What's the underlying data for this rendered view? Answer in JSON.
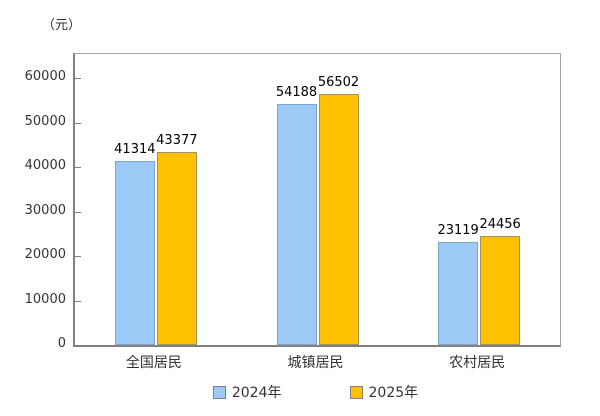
{
  "chart_data": {
    "type": "bar",
    "title": "",
    "unit_label": "（元）",
    "categories": [
      "全国居民",
      "城镇居民",
      "农村居民"
    ],
    "series": [
      {
        "name": "2024年",
        "values": [
          41314,
          54188,
          23119
        ],
        "color": "#9DC9F7",
        "border_color": "#7FA5C9"
      },
      {
        "name": "2025年",
        "values": [
          43377,
          56502,
          24456
        ],
        "color": "#FFC000",
        "border_color": "#A39355"
      }
    ],
    "value_labels_shown": true,
    "ylim": [
      0,
      60000
    ],
    "ytick_step": 10000,
    "ytick_labels": [
      "0",
      "10000",
      "20000",
      "30000",
      "40000",
      "50000",
      "60000"
    ],
    "grid": false,
    "legend_position": "bottom"
  },
  "colors": {
    "background": "#FFFFFF",
    "axis": "#808080",
    "tick_text": "#333333",
    "value_label_text": "#000000"
  }
}
